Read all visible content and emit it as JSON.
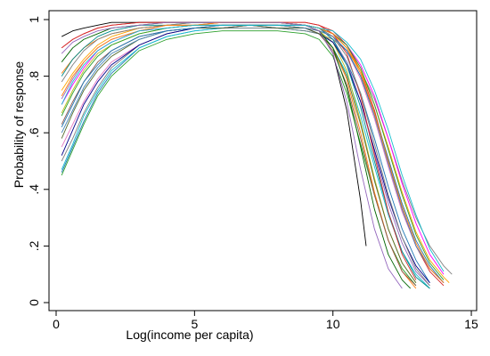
{
  "chart_data": {
    "type": "line",
    "title": "",
    "xlabel": "Log(income per capita)",
    "ylabel": "Probability of response",
    "xlim": [
      0,
      15
    ],
    "ylim": [
      0,
      1
    ],
    "x_ticks": [
      {
        "value": 0,
        "label": "0"
      },
      {
        "value": 5,
        "label": "5"
      },
      {
        "value": 10,
        "label": "10"
      },
      {
        "value": 15,
        "label": "15"
      }
    ],
    "y_ticks": [
      {
        "value": 0,
        "label": "0"
      },
      {
        "value": 0.2,
        "label": ".2"
      },
      {
        "value": 0.4,
        "label": ".4"
      },
      {
        "value": 0.6,
        "label": ".6"
      },
      {
        "value": 0.8,
        "label": ".8"
      },
      {
        "value": 1,
        "label": "1"
      }
    ],
    "y_tick_label_orientation": "rotated",
    "grid": false,
    "legend": "none",
    "series": [
      {
        "color": "#2ca02c",
        "x": [
          0.2,
          0.6,
          1,
          1.5,
          2,
          3,
          4,
          5,
          6,
          7,
          8,
          9,
          9.5,
          10,
          10.5,
          11,
          11.5,
          12,
          12.5,
          13
        ],
        "y": [
          0.45,
          0.54,
          0.63,
          0.73,
          0.8,
          0.89,
          0.93,
          0.95,
          0.96,
          0.96,
          0.96,
          0.95,
          0.93,
          0.87,
          0.74,
          0.56,
          0.38,
          0.22,
          0.12,
          0.06
        ]
      },
      {
        "color": "#1f77b4",
        "x": [
          0.2,
          0.6,
          1,
          1.5,
          2,
          3,
          4,
          5,
          6,
          7,
          8,
          9,
          9.5,
          10,
          10.5,
          11,
          11.5,
          12,
          12.5,
          13,
          13.5
        ],
        "y": [
          0.46,
          0.55,
          0.64,
          0.74,
          0.81,
          0.9,
          0.94,
          0.96,
          0.97,
          0.97,
          0.97,
          0.96,
          0.95,
          0.92,
          0.85,
          0.74,
          0.58,
          0.41,
          0.26,
          0.15,
          0.07
        ]
      },
      {
        "color": "#d62728",
        "x": [
          0.2,
          0.6,
          1,
          1.5,
          2,
          3,
          4,
          5,
          6,
          7,
          8,
          9,
          9.5,
          10,
          10.5,
          11,
          11.5,
          12,
          12.5,
          13,
          13.5,
          14
        ],
        "y": [
          0.9,
          0.93,
          0.95,
          0.97,
          0.98,
          0.99,
          0.99,
          0.99,
          0.99,
          0.99,
          0.99,
          0.99,
          0.98,
          0.96,
          0.91,
          0.82,
          0.68,
          0.5,
          0.33,
          0.2,
          0.11,
          0.06
        ]
      },
      {
        "color": "#17becf",
        "x": [
          0.2,
          0.6,
          1,
          1.5,
          2,
          3,
          4,
          5,
          6,
          7,
          8,
          9,
          9.5,
          10,
          10.5,
          11,
          11.5,
          12,
          12.5,
          13,
          13.5
        ],
        "y": [
          0.47,
          0.56,
          0.66,
          0.75,
          0.82,
          0.9,
          0.94,
          0.96,
          0.97,
          0.97,
          0.97,
          0.96,
          0.95,
          0.9,
          0.81,
          0.66,
          0.48,
          0.31,
          0.18,
          0.1,
          0.05
        ]
      },
      {
        "color": "#000000",
        "x": [
          0.2,
          0.6,
          1,
          1.5,
          2,
          3,
          4,
          5,
          6,
          7,
          8,
          9,
          9.5,
          10,
          10.5,
          11,
          11.2
        ],
        "y": [
          0.94,
          0.96,
          0.97,
          0.98,
          0.99,
          0.99,
          0.99,
          0.99,
          0.99,
          0.99,
          0.99,
          0.98,
          0.96,
          0.88,
          0.68,
          0.36,
          0.2
        ]
      },
      {
        "color": "#ff7f0e",
        "x": [
          0.2,
          0.6,
          1,
          1.5,
          2,
          3,
          4,
          5,
          6,
          7,
          8,
          9,
          9.5,
          10,
          10.5,
          11,
          11.5,
          12,
          12.5,
          13
        ],
        "y": [
          0.81,
          0.86,
          0.9,
          0.93,
          0.95,
          0.97,
          0.98,
          0.98,
          0.98,
          0.98,
          0.98,
          0.97,
          0.95,
          0.9,
          0.79,
          0.6,
          0.39,
          0.22,
          0.11,
          0.05
        ]
      },
      {
        "color": "#e377c2",
        "x": [
          0.2,
          0.6,
          1,
          1.5,
          2,
          3,
          4,
          5,
          6,
          7,
          8,
          9,
          9.5,
          10,
          10.5,
          11,
          11.5,
          12,
          12.5,
          13,
          13.5,
          14
        ],
        "y": [
          0.55,
          0.63,
          0.71,
          0.79,
          0.85,
          0.91,
          0.95,
          0.97,
          0.97,
          0.98,
          0.98,
          0.97,
          0.96,
          0.94,
          0.89,
          0.79,
          0.65,
          0.48,
          0.32,
          0.2,
          0.12,
          0.07
        ]
      },
      {
        "color": "#808080",
        "x": [
          0.2,
          0.6,
          1,
          1.5,
          2,
          3,
          4,
          5,
          6,
          7,
          8,
          9,
          9.5,
          10,
          10.5,
          11,
          11.5,
          12,
          12.5,
          13,
          13.5,
          14,
          14.3
        ],
        "y": [
          0.5,
          0.58,
          0.67,
          0.76,
          0.83,
          0.91,
          0.95,
          0.97,
          0.97,
          0.97,
          0.97,
          0.96,
          0.95,
          0.93,
          0.89,
          0.82,
          0.72,
          0.58,
          0.43,
          0.3,
          0.2,
          0.13,
          0.1
        ]
      },
      {
        "color": "#8c564b",
        "x": [
          0.2,
          0.6,
          1,
          1.5,
          2,
          3,
          4,
          5,
          6,
          7,
          8,
          9,
          9.5,
          10,
          10.5,
          11,
          11.5,
          12,
          12.5,
          13
        ],
        "y": [
          0.63,
          0.71,
          0.78,
          0.85,
          0.89,
          0.94,
          0.96,
          0.97,
          0.98,
          0.98,
          0.98,
          0.97,
          0.95,
          0.89,
          0.77,
          0.58,
          0.38,
          0.22,
          0.11,
          0.06
        ]
      },
      {
        "color": "#9467bd",
        "x": [
          0.2,
          0.6,
          1,
          1.5,
          2,
          3,
          4,
          5,
          6,
          7,
          8,
          9,
          9.5,
          10,
          10.5,
          11,
          11.5,
          12,
          12.5,
          13,
          13.5
        ],
        "y": [
          0.72,
          0.79,
          0.85,
          0.9,
          0.93,
          0.96,
          0.98,
          0.98,
          0.99,
          0.99,
          0.99,
          0.98,
          0.97,
          0.93,
          0.85,
          0.71,
          0.53,
          0.35,
          0.21,
          0.11,
          0.06
        ]
      },
      {
        "color": "#bcbd22",
        "x": [
          0.2,
          0.6,
          1,
          1.5,
          2,
          3,
          4,
          5,
          6,
          7,
          8,
          9,
          9.5,
          10,
          10.5,
          11,
          11.5,
          12,
          12.5,
          13
        ],
        "y": [
          0.67,
          0.75,
          0.82,
          0.88,
          0.91,
          0.95,
          0.97,
          0.98,
          0.98,
          0.98,
          0.98,
          0.97,
          0.96,
          0.92,
          0.82,
          0.64,
          0.44,
          0.26,
          0.14,
          0.07
        ]
      },
      {
        "color": "#00008b",
        "x": [
          0.2,
          0.6,
          1,
          1.5,
          2,
          3,
          4,
          5,
          6,
          7,
          8,
          9,
          9.5,
          10,
          10.5,
          11,
          11.5,
          12,
          12.5,
          13,
          13.5
        ],
        "y": [
          0.52,
          0.61,
          0.7,
          0.78,
          0.84,
          0.91,
          0.95,
          0.97,
          0.97,
          0.98,
          0.97,
          0.97,
          0.95,
          0.92,
          0.84,
          0.71,
          0.54,
          0.37,
          0.23,
          0.13,
          0.07
        ]
      },
      {
        "color": "#ff00ff",
        "x": [
          0.2,
          0.6,
          1,
          1.5,
          2,
          3,
          4,
          5,
          6,
          7,
          8,
          9,
          9.5,
          10,
          10.5,
          11,
          11.5,
          12,
          12.5,
          13,
          13.5,
          14
        ],
        "y": [
          0.7,
          0.77,
          0.83,
          0.89,
          0.92,
          0.96,
          0.97,
          0.98,
          0.98,
          0.98,
          0.98,
          0.98,
          0.97,
          0.95,
          0.91,
          0.84,
          0.73,
          0.58,
          0.42,
          0.28,
          0.17,
          0.1
        ]
      },
      {
        "color": "#008b8b",
        "x": [
          0.2,
          0.6,
          1,
          1.5,
          2,
          3,
          4,
          5,
          6,
          7,
          8,
          9,
          9.5,
          10,
          10.5,
          11,
          11.5,
          12,
          12.5,
          13,
          13.5
        ],
        "y": [
          0.8,
          0.86,
          0.9,
          0.94,
          0.96,
          0.98,
          0.98,
          0.99,
          0.99,
          0.99,
          0.99,
          0.98,
          0.97,
          0.93,
          0.84,
          0.69,
          0.5,
          0.32,
          0.18,
          0.09,
          0.05
        ]
      },
      {
        "color": "#556b2f",
        "x": [
          0.2,
          0.6,
          1,
          1.5,
          2,
          3,
          4,
          5,
          6,
          7,
          8,
          9,
          9.5,
          10,
          10.5,
          11,
          11.5,
          12,
          12.5,
          13
        ],
        "y": [
          0.58,
          0.67,
          0.75,
          0.82,
          0.87,
          0.93,
          0.96,
          0.97,
          0.97,
          0.98,
          0.97,
          0.97,
          0.95,
          0.9,
          0.8,
          0.63,
          0.43,
          0.26,
          0.14,
          0.07
        ]
      },
      {
        "color": "#4682b4",
        "x": [
          0.2,
          0.6,
          1,
          1.5,
          2,
          3,
          4,
          5,
          6,
          7,
          8,
          9,
          9.5,
          10,
          10.5,
          11,
          11.5,
          12,
          12.5,
          13,
          13.5,
          14
        ],
        "y": [
          0.6,
          0.68,
          0.76,
          0.83,
          0.88,
          0.93,
          0.96,
          0.97,
          0.98,
          0.98,
          0.98,
          0.97,
          0.96,
          0.94,
          0.89,
          0.8,
          0.66,
          0.49,
          0.33,
          0.2,
          0.12,
          0.07
        ]
      },
      {
        "color": "#ffa500",
        "x": [
          0.2,
          0.6,
          1,
          1.5,
          2,
          3,
          4,
          5,
          6,
          7,
          8,
          9,
          9.5,
          10,
          10.5,
          11,
          11.5,
          12,
          12.5,
          13,
          13.5,
          14,
          14.2
        ],
        "y": [
          0.75,
          0.81,
          0.86,
          0.91,
          0.94,
          0.97,
          0.98,
          0.98,
          0.99,
          0.99,
          0.99,
          0.98,
          0.97,
          0.95,
          0.9,
          0.82,
          0.7,
          0.55,
          0.39,
          0.25,
          0.15,
          0.09,
          0.07
        ]
      },
      {
        "color": "#006400",
        "x": [
          0.2,
          0.6,
          1,
          1.5,
          2,
          3,
          4,
          5,
          6,
          7,
          8,
          9,
          9.5,
          10,
          10.5,
          11,
          11.5,
          12,
          12.5,
          12.8
        ],
        "y": [
          0.85,
          0.9,
          0.93,
          0.95,
          0.97,
          0.98,
          0.99,
          0.99,
          0.99,
          0.99,
          0.99,
          0.98,
          0.96,
          0.9,
          0.76,
          0.55,
          0.33,
          0.17,
          0.08,
          0.05
        ]
      },
      {
        "color": "#2ca02c",
        "x": [
          0.2,
          0.6,
          1,
          1.5,
          2,
          3,
          4,
          5,
          6,
          7,
          8,
          9,
          9.5,
          10,
          10.5,
          11,
          11.5,
          12,
          12.5,
          13,
          13.5,
          14
        ],
        "y": [
          0.66,
          0.74,
          0.81,
          0.87,
          0.91,
          0.95,
          0.97,
          0.98,
          0.98,
          0.98,
          0.98,
          0.98,
          0.97,
          0.95,
          0.91,
          0.83,
          0.7,
          0.54,
          0.38,
          0.24,
          0.14,
          0.08
        ]
      },
      {
        "color": "#d62728",
        "x": [
          0.2,
          0.6,
          1,
          1.5,
          2,
          3,
          4,
          5,
          6,
          7,
          8,
          9,
          9.5,
          10,
          10.5,
          11,
          11.5,
          12,
          12.5,
          13
        ],
        "y": [
          0.9,
          0.93,
          0.95,
          0.97,
          0.98,
          0.99,
          0.99,
          0.99,
          0.99,
          0.99,
          0.99,
          0.99,
          0.98,
          0.95,
          0.88,
          0.73,
          0.52,
          0.32,
          0.17,
          0.08
        ]
      },
      {
        "color": "#1f77b4",
        "x": [
          0.2,
          0.6,
          1,
          1.5,
          2,
          3,
          4,
          5,
          6,
          7,
          8,
          9,
          9.5,
          10,
          10.5,
          11,
          11.5,
          12,
          12.5,
          13,
          13.5,
          14
        ],
        "y": [
          0.62,
          0.7,
          0.78,
          0.84,
          0.89,
          0.94,
          0.96,
          0.97,
          0.98,
          0.98,
          0.98,
          0.98,
          0.97,
          0.94,
          0.89,
          0.8,
          0.67,
          0.51,
          0.35,
          0.22,
          0.13,
          0.07
        ]
      },
      {
        "color": "#808080",
        "x": [
          0.2,
          0.6,
          1,
          1.5,
          2,
          3,
          4,
          5,
          6,
          7,
          8,
          9,
          9.5,
          10,
          10.5,
          11,
          11.5,
          12,
          12.5,
          13,
          13.5
        ],
        "y": [
          0.78,
          0.84,
          0.89,
          0.93,
          0.95,
          0.97,
          0.98,
          0.99,
          0.99,
          0.99,
          0.99,
          0.98,
          0.97,
          0.94,
          0.87,
          0.74,
          0.56,
          0.38,
          0.23,
          0.12,
          0.06
        ]
      },
      {
        "color": "#ff7f0e",
        "x": [
          0.2,
          0.6,
          1,
          1.5,
          2,
          3,
          4,
          5,
          6,
          7,
          8,
          9,
          9.5,
          10,
          10.5,
          11,
          11.5,
          12,
          12.5,
          13,
          13.5,
          14
        ],
        "y": [
          0.73,
          0.8,
          0.85,
          0.9,
          0.93,
          0.96,
          0.98,
          0.98,
          0.99,
          0.99,
          0.99,
          0.98,
          0.97,
          0.95,
          0.9,
          0.81,
          0.67,
          0.5,
          0.34,
          0.21,
          0.12,
          0.07
        ]
      },
      {
        "color": "#9467bd",
        "x": [
          0.2,
          0.6,
          1,
          1.5,
          2,
          3,
          4,
          5,
          6,
          7,
          8,
          9,
          9.5,
          10,
          10.5,
          11,
          11.5,
          12,
          12.5
        ],
        "y": [
          0.88,
          0.92,
          0.94,
          0.96,
          0.97,
          0.98,
          0.99,
          0.99,
          0.99,
          0.99,
          0.99,
          0.98,
          0.96,
          0.88,
          0.71,
          0.47,
          0.26,
          0.12,
          0.05
        ]
      },
      {
        "color": "#17becf",
        "x": [
          0.2,
          0.6,
          1,
          1.5,
          2,
          3,
          4,
          5,
          6,
          7,
          8,
          9,
          9.5,
          10,
          10.5,
          11,
          11.5,
          12,
          12.5,
          13,
          13.5,
          14
        ],
        "y": [
          0.7,
          0.78,
          0.84,
          0.89,
          0.92,
          0.96,
          0.97,
          0.98,
          0.98,
          0.98,
          0.98,
          0.98,
          0.97,
          0.96,
          0.92,
          0.86,
          0.75,
          0.61,
          0.45,
          0.31,
          0.19,
          0.11
        ]
      }
    ]
  }
}
